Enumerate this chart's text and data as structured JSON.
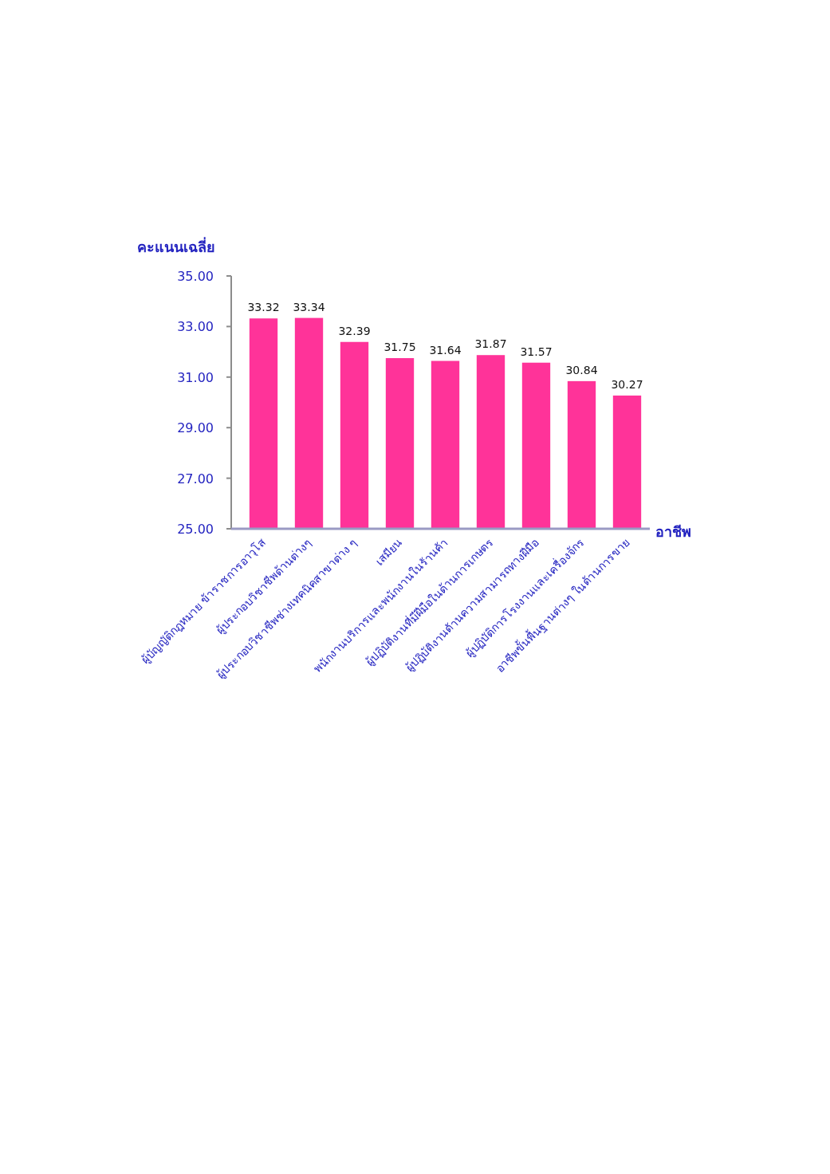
{
  "chart_data": {
    "type": "bar",
    "xlabel": "อาชีพ",
    "ylabel": "คะแนนเฉลี่ย",
    "categories": [
      "ผู้บัญญัติกฎหมาย ข้าราชการอาวุโส",
      "ผู้ประกอบวิชาชีพด้านต่างๆ",
      "ผู้ประกอบวิชาชีพช่างเทคนิคสาขาต่าง ๆ",
      "เสมียน",
      "พนักงานบริการและพนักงานในร้านค้า",
      "ผู้ปฏิบัติงานที่มีฝีมือในด้านการเกษตร",
      "ผู้ปฏิบัติงานด้านความสามารถทางฝีมือ",
      "ผู้ปฏิบัติการโรงงานและเครื่องจักร",
      "อาชีพขั้นพื้นฐานต่างๆ ในด้านการขาย"
    ],
    "values": [
      33.32,
      33.34,
      32.39,
      31.75,
      31.64,
      31.87,
      31.57,
      30.84,
      30.27
    ],
    "color": "#ff3399",
    "ylim": [
      25,
      35
    ],
    "yticks": [
      {
        "value": 25,
        "label": "25.00"
      },
      {
        "value": 27,
        "label": "27.00"
      },
      {
        "value": 29,
        "label": "29.00"
      },
      {
        "value": 31,
        "label": "31.00"
      },
      {
        "value": 33,
        "label": "33.00"
      },
      {
        "value": 35,
        "label": "35.00"
      }
    ],
    "data_labels": true
  }
}
